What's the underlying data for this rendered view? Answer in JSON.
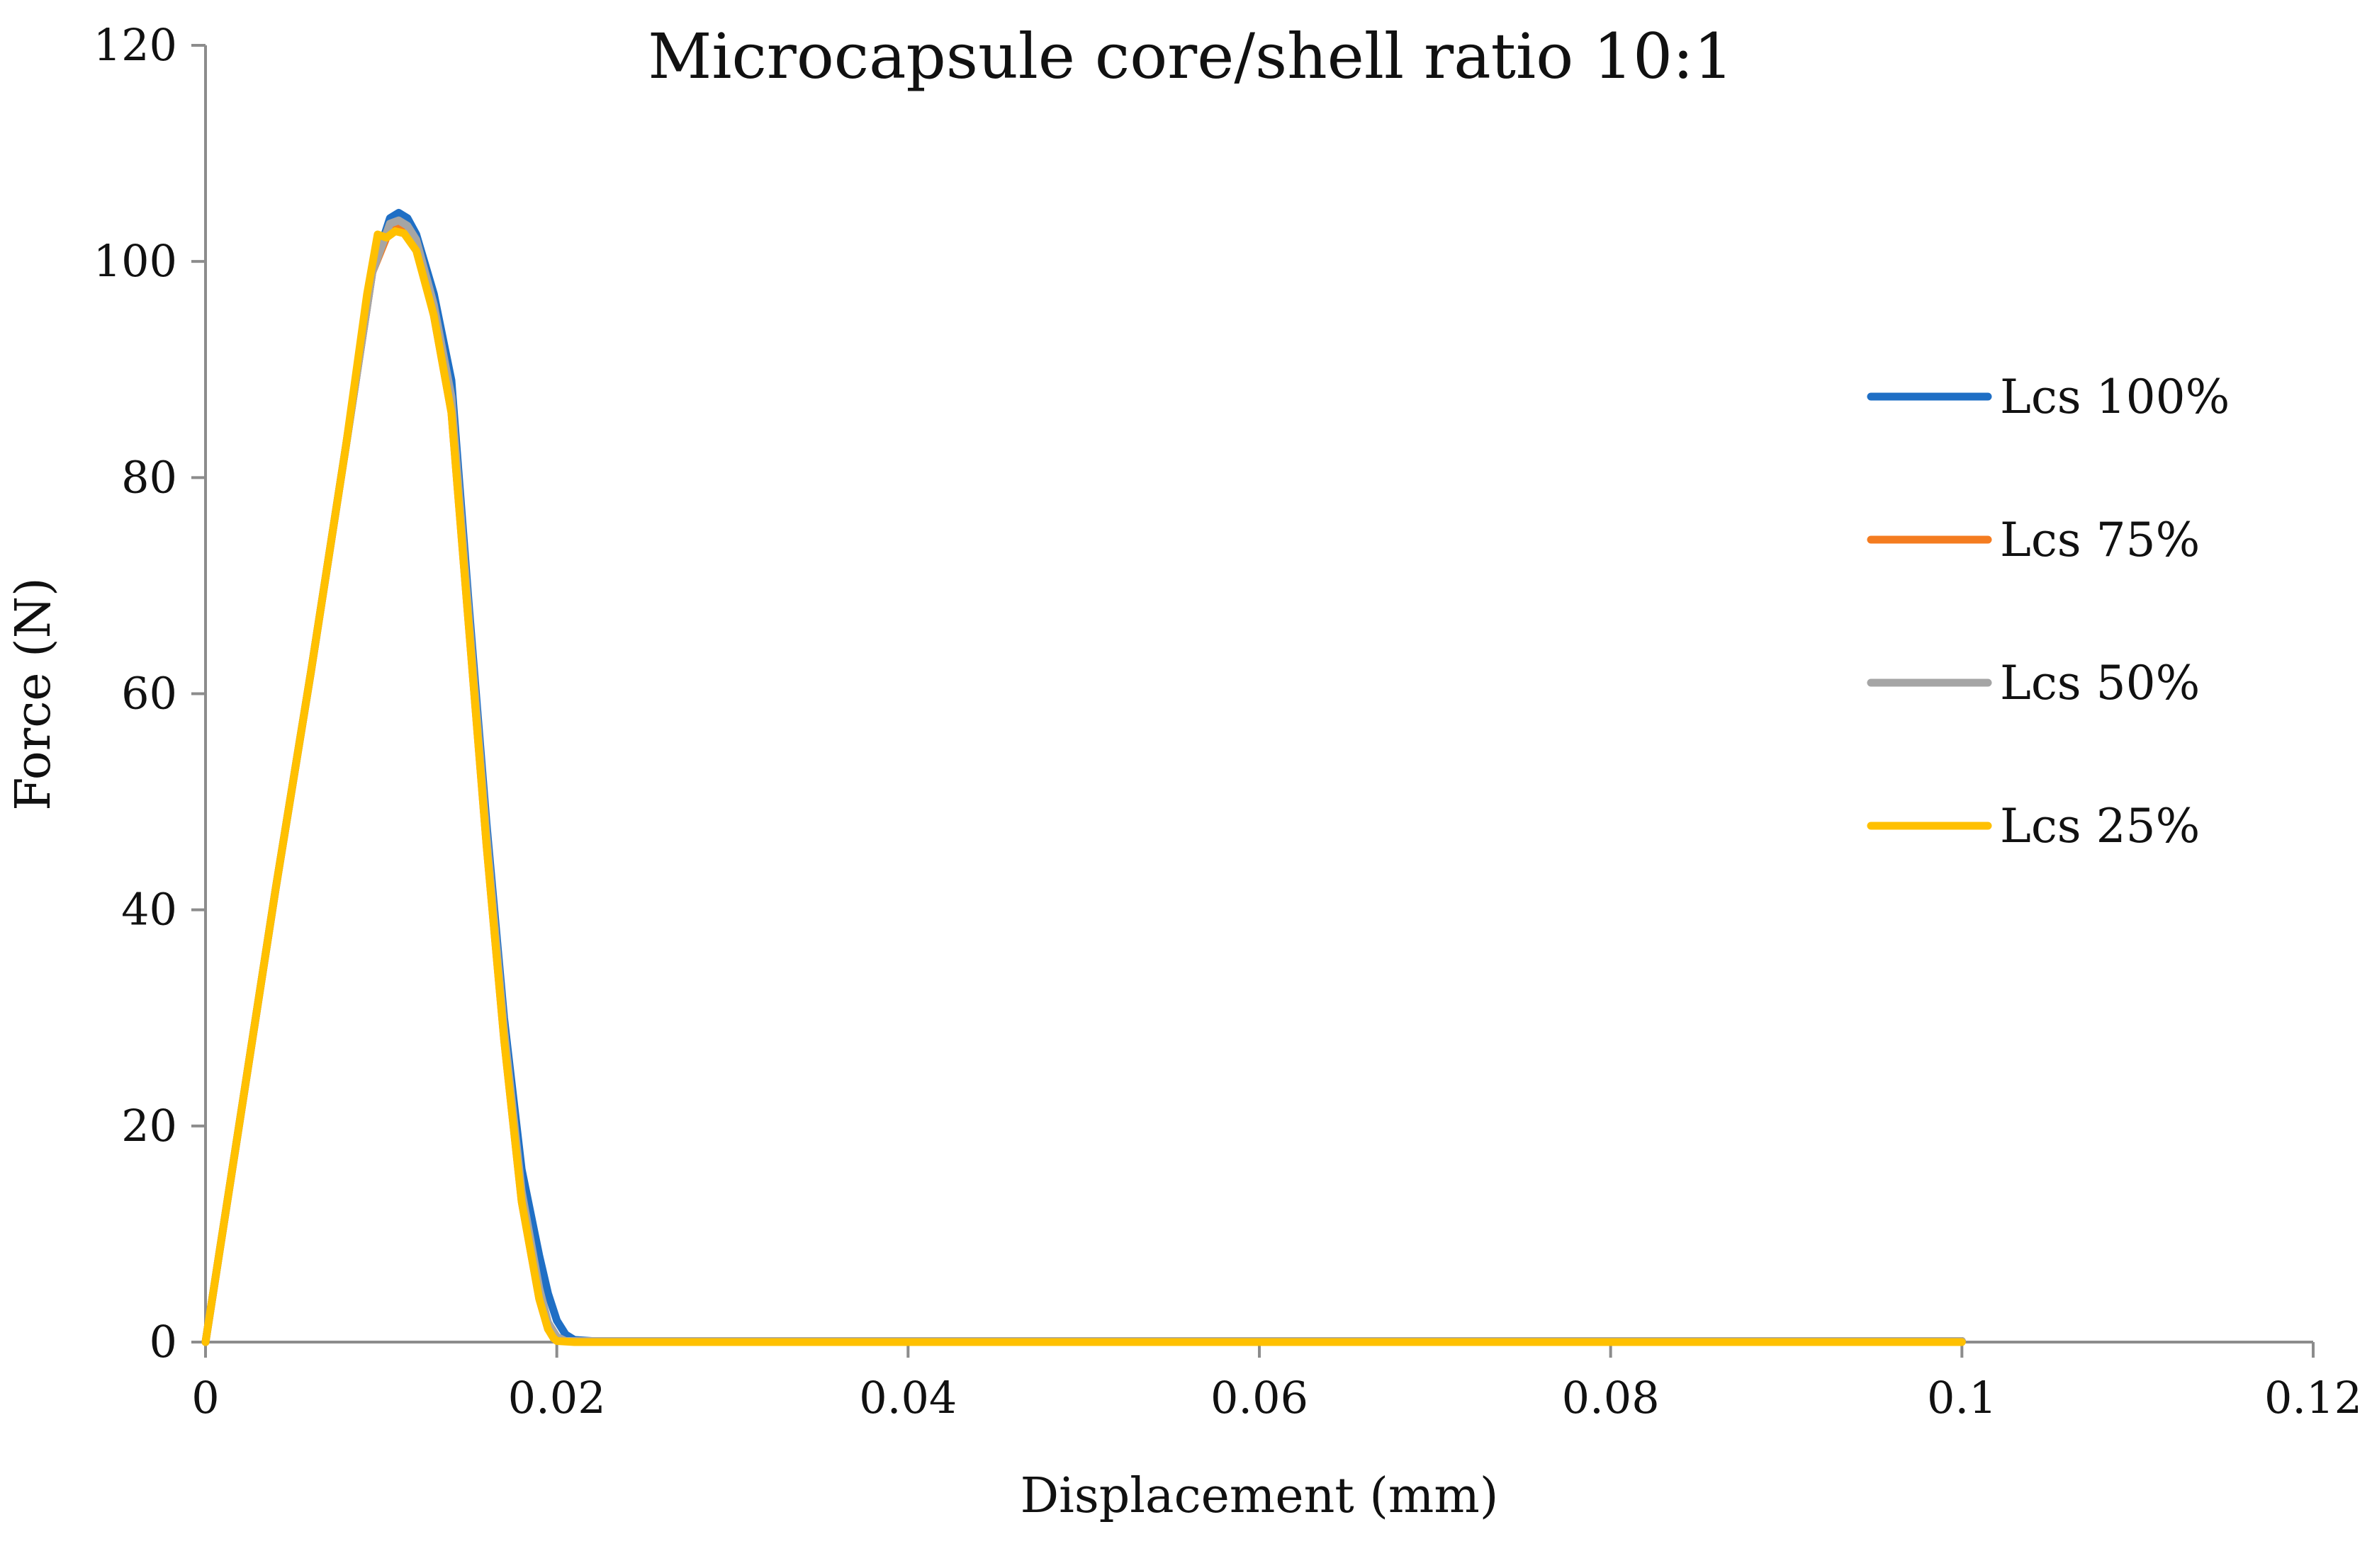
{
  "chart_data": {
    "type": "line",
    "title": "Microcapsule core/shell ratio 10:1",
    "xlabel": "Displacement (mm)",
    "ylabel": "Force (N)",
    "xlim": [
      0,
      0.12
    ],
    "ylim": [
      0,
      120
    ],
    "xticks": [
      0,
      0.02,
      0.04,
      0.06,
      0.08,
      0.1,
      0.12
    ],
    "xtick_labels": [
      "0",
      "0.02",
      "0.04",
      "0.06",
      "0.08",
      "0.1",
      "0.12"
    ],
    "yticks": [
      0,
      20,
      40,
      60,
      80,
      100,
      120
    ],
    "ytick_labels": [
      "0",
      "20",
      "40",
      "60",
      "80",
      "100",
      "120"
    ],
    "grid": false,
    "legend_position": "right",
    "series": [
      {
        "name": "Lcs 100%",
        "color": "#1f6fc5",
        "x": [
          0,
          0.002,
          0.004,
          0.006,
          0.008,
          0.0095,
          0.0105,
          0.011,
          0.0115,
          0.012,
          0.013,
          0.014,
          0.015,
          0.016,
          0.017,
          0.018,
          0.019,
          0.0195,
          0.02,
          0.0205,
          0.021,
          0.022,
          0.03,
          0.05,
          0.07,
          0.1
        ],
        "y": [
          0,
          21,
          42,
          62,
          83,
          99,
          104,
          104.5,
          104,
          102.5,
          97,
          89,
          68,
          48,
          30,
          16,
          8,
          4.5,
          2,
          0.7,
          0.2,
          0.1,
          0.1,
          0.1,
          0.1,
          0.1
        ]
      },
      {
        "name": "Lcs 75%",
        "color": "#f47c20",
        "x": [
          0,
          0.002,
          0.004,
          0.006,
          0.008,
          0.0095,
          0.0105,
          0.011,
          0.0115,
          0.012,
          0.013,
          0.014,
          0.015,
          0.016,
          0.017,
          0.018,
          0.019,
          0.0195,
          0.02,
          0.0205,
          0.021,
          0.03,
          0.05,
          0.07,
          0.1
        ],
        "y": [
          0,
          21,
          42,
          62,
          83,
          99,
          103,
          103.2,
          102.8,
          101.5,
          95,
          86,
          66,
          46,
          28,
          13,
          4,
          1.2,
          0.3,
          0.1,
          0.1,
          0.1,
          0.1,
          0.1,
          0.1
        ]
      },
      {
        "name": "Lcs 50%",
        "color": "#a5a5a5",
        "x": [
          0,
          0.002,
          0.004,
          0.006,
          0.008,
          0.0095,
          0.0105,
          0.011,
          0.0115,
          0.012,
          0.013,
          0.014,
          0.015,
          0.016,
          0.017,
          0.018,
          0.019,
          0.0195,
          0.02,
          0.0205,
          0.021,
          0.03,
          0.05,
          0.07,
          0.1
        ],
        "y": [
          0,
          21,
          42,
          62,
          83,
          99,
          103.5,
          103.8,
          103.3,
          102,
          96,
          87.5,
          67,
          47,
          29,
          14,
          5,
          1.8,
          0.5,
          0.1,
          0.1,
          0.1,
          0.1,
          0.1,
          0.1
        ]
      },
      {
        "name": "Lcs 25%",
        "color": "#ffc000",
        "x": [
          0,
          0.002,
          0.004,
          0.006,
          0.008,
          0.0092,
          0.0098,
          0.0103,
          0.0108,
          0.0113,
          0.012,
          0.013,
          0.014,
          0.015,
          0.016,
          0.017,
          0.018,
          0.019,
          0.0195,
          0.0198,
          0.02,
          0.021,
          0.03,
          0.05,
          0.07,
          0.1
        ],
        "y": [
          0,
          21,
          42,
          62,
          83,
          97,
          102.5,
          102.2,
          102.8,
          102.6,
          101,
          95,
          86,
          66,
          46,
          28,
          13,
          4,
          1.2,
          0.4,
          0.1,
          0,
          0,
          0,
          0,
          0
        ]
      }
    ]
  }
}
